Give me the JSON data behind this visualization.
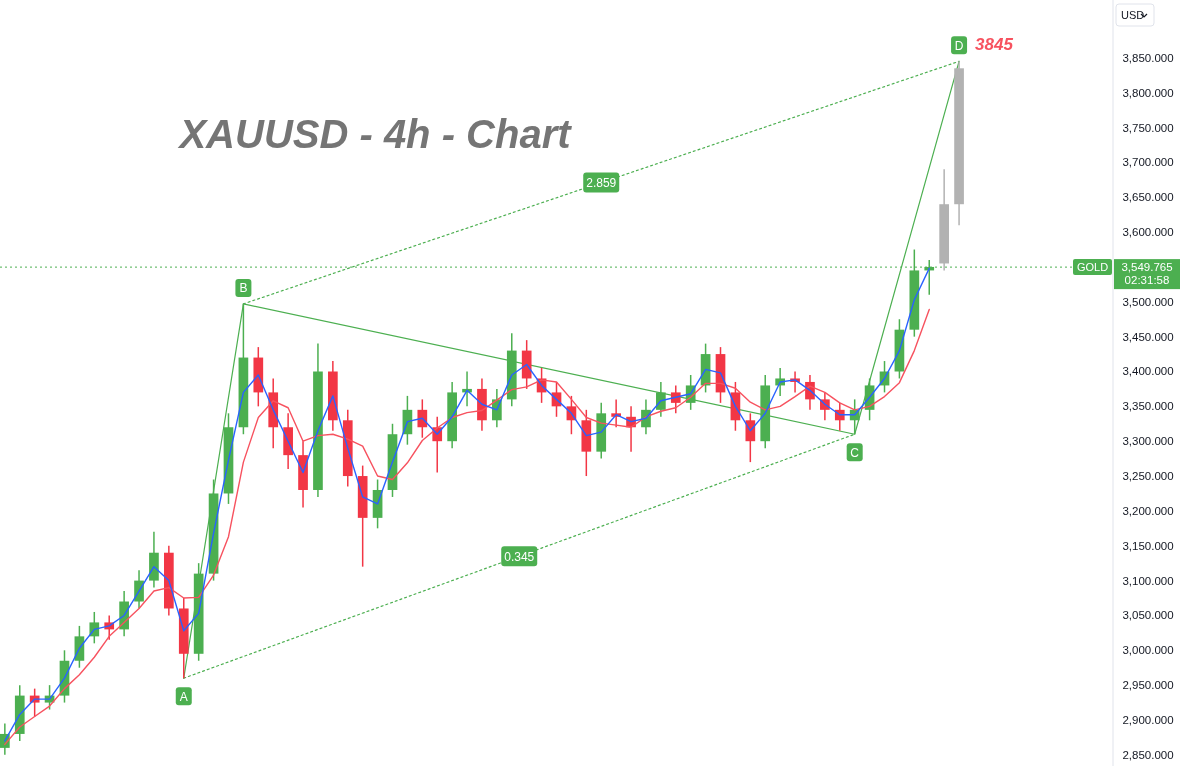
{
  "chart_data": {
    "type": "candlestick",
    "title": "XAUUSD - 4h - Chart",
    "categories": [
      null,
      null,
      null,
      null,
      null,
      null,
      null,
      null,
      null,
      null,
      null,
      null,
      null,
      null,
      null,
      null,
      null,
      null,
      null,
      null,
      null,
      null,
      null,
      null,
      null,
      null,
      null,
      null,
      null,
      null,
      null,
      null,
      null,
      null,
      null,
      null,
      null,
      null,
      null,
      null,
      null,
      null,
      null,
      null,
      null,
      null,
      null,
      null,
      null,
      null,
      null,
      null,
      null,
      null,
      null,
      null,
      null,
      null,
      null,
      null,
      null,
      null,
      null,
      null,
      null,
      null,
      null,
      null,
      null,
      null,
      null,
      null,
      null,
      null,
      null
    ],
    "series": [
      {
        "ohlc": [
          [
            2860,
            2895,
            2850,
            2880
          ],
          [
            2880,
            2950,
            2870,
            2935
          ],
          [
            2935,
            2945,
            2905,
            2925
          ],
          [
            2925,
            2950,
            2915,
            2935
          ],
          [
            2935,
            3000,
            2925,
            2985
          ],
          [
            2985,
            3035,
            2975,
            3020
          ],
          [
            3020,
            3055,
            3010,
            3040
          ],
          [
            3040,
            3050,
            3015,
            3030
          ],
          [
            3030,
            3085,
            3020,
            3070
          ],
          [
            3070,
            3115,
            3060,
            3100
          ],
          [
            3100,
            3170,
            3090,
            3140
          ],
          [
            3140,
            3150,
            3050,
            3060
          ],
          [
            3060,
            3075,
            2960,
            2995
          ],
          [
            2995,
            3125,
            2985,
            3110
          ],
          [
            3110,
            3245,
            3100,
            3225
          ],
          [
            3225,
            3340,
            3210,
            3320
          ],
          [
            3320,
            3497,
            3310,
            3420
          ],
          [
            3420,
            3435,
            3350,
            3370
          ],
          [
            3370,
            3390,
            3290,
            3320
          ],
          [
            3320,
            3340,
            3260,
            3280
          ],
          [
            3280,
            3300,
            3205,
            3230
          ],
          [
            3230,
            3440,
            3220,
            3400
          ],
          [
            3400,
            3415,
            3315,
            3330
          ],
          [
            3330,
            3345,
            3235,
            3250
          ],
          [
            3250,
            3265,
            3120,
            3190
          ],
          [
            3190,
            3245,
            3175,
            3230
          ],
          [
            3230,
            3325,
            3220,
            3310
          ],
          [
            3310,
            3365,
            3295,
            3345
          ],
          [
            3345,
            3360,
            3305,
            3320
          ],
          [
            3320,
            3335,
            3255,
            3300
          ],
          [
            3300,
            3385,
            3290,
            3370
          ],
          [
            3370,
            3400,
            3350,
            3375
          ],
          [
            3375,
            3390,
            3315,
            3330
          ],
          [
            3330,
            3375,
            3320,
            3360
          ],
          [
            3360,
            3455,
            3350,
            3430
          ],
          [
            3430,
            3445,
            3375,
            3390
          ],
          [
            3390,
            3405,
            3355,
            3370
          ],
          [
            3370,
            3385,
            3335,
            3350
          ],
          [
            3350,
            3365,
            3310,
            3330
          ],
          [
            3330,
            3345,
            3250,
            3285
          ],
          [
            3285,
            3355,
            3275,
            3340
          ],
          [
            3340,
            3360,
            3320,
            3335
          ],
          [
            3335,
            3350,
            3285,
            3320
          ],
          [
            3320,
            3360,
            3310,
            3345
          ],
          [
            3345,
            3385,
            3335,
            3370
          ],
          [
            3370,
            3380,
            3340,
            3355
          ],
          [
            3355,
            3395,
            3345,
            3380
          ],
          [
            3380,
            3440,
            3370,
            3425
          ],
          [
            3425,
            3435,
            3355,
            3370
          ],
          [
            3370,
            3385,
            3315,
            3330
          ],
          [
            3330,
            3340,
            3270,
            3300
          ],
          [
            3300,
            3395,
            3290,
            3380
          ],
          [
            3380,
            3405,
            3365,
            3390
          ],
          [
            3390,
            3400,
            3370,
            3385
          ],
          [
            3385,
            3395,
            3345,
            3360
          ],
          [
            3360,
            3370,
            3330,
            3345
          ],
          [
            3345,
            3355,
            3315,
            3330
          ],
          [
            3330,
            3360,
            3310,
            3345
          ],
          [
            3345,
            3390,
            3330,
            3380
          ],
          [
            3380,
            3415,
            3370,
            3400
          ],
          [
            3400,
            3475,
            3390,
            3460
          ],
          [
            3460,
            3575,
            3450,
            3545
          ],
          [
            3545,
            3560,
            3510,
            3550
          ],
          null,
          null,
          null,
          null,
          null,
          null,
          null,
          null,
          null,
          null,
          null,
          null
        ],
        "colors": [
          "#4caf50",
          "#4caf50",
          "#f23645",
          "#4caf50",
          "#4caf50",
          "#4caf50",
          "#4caf50",
          "#f23645",
          "#4caf50",
          "#4caf50",
          "#4caf50",
          "#f23645",
          "#f23645",
          "#4caf50",
          "#4caf50",
          "#4caf50",
          "#4caf50",
          "#f23645",
          "#f23645",
          "#f23645",
          "#f23645",
          "#4caf50",
          "#f23645",
          "#f23645",
          "#f23645",
          "#4caf50",
          "#4caf50",
          "#4caf50",
          "#f23645",
          "#f23645",
          "#4caf50",
          "#4caf50",
          "#f23645",
          "#4caf50",
          "#4caf50",
          "#f23645",
          "#f23645",
          "#f23645",
          "#f23645",
          "#f23645",
          "#4caf50",
          "#f23645",
          "#f23645",
          "#4caf50",
          "#4caf50",
          "#f23645",
          "#4caf50",
          "#4caf50",
          "#f23645",
          "#f23645",
          "#f23645",
          "#4caf50",
          "#4caf50",
          "#f23645",
          "#f23645",
          "#f23645",
          "#f23645",
          "#4caf50",
          "#4caf50",
          "#4caf50",
          "#4caf50",
          "#4caf50",
          "#4caf50",
          null,
          null,
          null,
          null,
          null,
          null,
          null,
          null,
          null,
          null,
          null,
          null
        ]
      },
      {
        "color": "#b2b2b2",
        "ohlc": [
          null,
          null,
          null,
          null,
          null,
          null,
          null,
          null,
          null,
          null,
          null,
          null,
          null,
          null,
          null,
          null,
          null,
          null,
          null,
          null,
          null,
          null,
          null,
          null,
          null,
          null,
          null,
          null,
          null,
          null,
          null,
          null,
          null,
          null,
          null,
          null,
          null,
          null,
          null,
          null,
          null,
          null,
          null,
          null,
          null,
          null,
          null,
          null,
          null,
          null,
          null,
          null,
          null,
          null,
          null,
          null,
          null,
          null,
          null,
          null,
          null,
          null,
          null,
          [
            3555,
            3690,
            3545,
            3640
          ],
          [
            3640,
            3845,
            3610,
            3835
          ],
          null,
          null,
          null,
          null,
          null,
          null,
          null,
          null,
          null,
          null
        ]
      },
      {
        "type": "line",
        "color": "#f7525f",
        "values": [
          2865,
          2890,
          2905,
          2920,
          2945,
          2965,
          2990,
          3020,
          3040,
          3060,
          3085,
          3090,
          3075,
          3076,
          3108,
          3163,
          3270,
          3334,
          3358,
          3348,
          3300,
          3308,
          3310,
          3303,
          3293,
          3250,
          3245,
          3269,
          3301,
          3319,
          3334,
          3341,
          3344,
          3359,
          3374,
          3378,
          3388,
          3385,
          3360,
          3334,
          3326,
          3323,
          3320,
          3335,
          3343,
          3348,
          3363,
          3383,
          3383,
          3376,
          3356,
          3345,
          3350,
          3364,
          3379,
          3370,
          3355,
          3345,
          3350,
          3364,
          3384,
          3430,
          3489,
          null,
          null,
          null,
          null,
          null,
          null,
          null,
          null,
          null,
          null,
          null,
          null
        ]
      },
      {
        "type": "line",
        "color": "#2962ff",
        "values": [
          2870,
          2908,
          2930,
          2930,
          2960,
          3003,
          3030,
          3035,
          3050,
          3085,
          3120,
          3100,
          3028,
          3053,
          3168,
          3273,
          3370,
          3395,
          3345,
          3300,
          3255,
          3315,
          3365,
          3290,
          3220,
          3210,
          3270,
          3328,
          3333,
          3310,
          3335,
          3373,
          3353,
          3345,
          3395,
          3410,
          3380,
          3360,
          3340,
          3308,
          3313,
          3338,
          3328,
          3333,
          3358,
          3363,
          3368,
          3403,
          3398,
          3350,
          3315,
          3340,
          3385,
          3388,
          3373,
          3353,
          3338,
          3338,
          3363,
          3390,
          3430,
          3503,
          3548,
          null,
          null,
          null,
          null,
          null,
          null,
          null,
          null,
          null,
          null,
          null,
          null
        ]
      },
      {
        "type": "line",
        "color": "#4caf50",
        "line_style": "solid",
        "values": [
          null,
          null,
          null,
          null,
          null,
          null,
          null,
          null,
          null,
          null,
          null,
          null,
          2960,
          null,
          null,
          null,
          3497,
          null,
          null,
          null,
          null,
          null,
          null,
          null,
          null,
          null,
          null,
          null,
          null,
          null,
          null,
          null,
          null,
          null,
          null,
          null,
          null,
          null,
          null,
          null,
          null,
          null,
          null,
          null,
          null,
          null,
          null,
          null,
          null,
          null,
          null,
          null,
          null,
          null,
          null,
          null,
          null,
          3310,
          null,
          null,
          null,
          null,
          null,
          null,
          3845,
          null,
          null,
          null,
          null,
          null,
          null,
          null,
          null,
          null,
          null
        ],
        "value_labels": [
          null,
          null,
          null,
          null,
          null,
          null,
          null,
          null,
          null,
          null,
          null,
          null,
          "A",
          null,
          null,
          null,
          "B",
          null,
          null,
          null,
          null,
          null,
          null,
          null,
          null,
          null,
          null,
          null,
          null,
          null,
          null,
          null,
          null,
          null,
          null,
          null,
          null,
          null,
          null,
          null,
          null,
          null,
          null,
          null,
          null,
          null,
          null,
          null,
          null,
          null,
          null,
          null,
          null,
          null,
          null,
          null,
          null,
          "C",
          null,
          null,
          null,
          null,
          null,
          null,
          "D",
          null,
          null,
          null,
          null,
          null,
          null,
          null,
          null,
          null,
          null
        ]
      },
      {
        "type": "line",
        "name": "2.859",
        "color": "#4caf50",
        "line_style": "dotted",
        "values": [
          null,
          null,
          null,
          null,
          null,
          null,
          null,
          null,
          null,
          null,
          null,
          null,
          null,
          null,
          null,
          null,
          3497,
          null,
          null,
          null,
          null,
          null,
          null,
          null,
          null,
          null,
          null,
          null,
          null,
          null,
          null,
          null,
          null,
          null,
          null,
          null,
          null,
          null,
          null,
          null,
          null,
          null,
          null,
          null,
          null,
          null,
          null,
          null,
          null,
          null,
          null,
          null,
          null,
          null,
          null,
          null,
          null,
          null,
          null,
          null,
          null,
          null,
          null,
          null,
          3845,
          null,
          null,
          null,
          null,
          null,
          null,
          null,
          null,
          null,
          null
        ]
      },
      {
        "type": "line",
        "name": "0.345",
        "color": "#4caf50",
        "line_style": "dotted",
        "values": [
          null,
          null,
          null,
          null,
          null,
          null,
          null,
          null,
          null,
          null,
          null,
          null,
          2960,
          null,
          null,
          null,
          null,
          null,
          null,
          null,
          null,
          null,
          null,
          null,
          null,
          null,
          null,
          null,
          null,
          null,
          null,
          null,
          null,
          null,
          null,
          null,
          null,
          null,
          null,
          null,
          null,
          null,
          null,
          null,
          null,
          null,
          null,
          null,
          null,
          null,
          null,
          null,
          null,
          null,
          null,
          null,
          null,
          3310,
          null,
          null,
          null,
          null,
          null,
          null,
          null,
          null,
          null,
          null,
          null,
          null,
          null,
          null,
          null,
          null,
          null
        ]
      }
    ],
    "ylim": [
      2834,
      3933
    ],
    "yticks": [
      {
        "value": 2850,
        "label": "2,850.000"
      },
      {
        "value": 2900,
        "label": "2,900.000"
      },
      {
        "value": 2950,
        "label": "2,950.000"
      },
      {
        "value": 3000,
        "label": "3,000.000"
      },
      {
        "value": 3050,
        "label": "3,050.000"
      },
      {
        "value": 3100,
        "label": "3,100.000"
      },
      {
        "value": 3150,
        "label": "3,150.000"
      },
      {
        "value": 3200,
        "label": "3,200.000"
      },
      {
        "value": 3250,
        "label": "3,250.000"
      },
      {
        "value": 3300,
        "label": "3,300.000"
      },
      {
        "value": 3350,
        "label": "3,350.000"
      },
      {
        "value": 3400,
        "label": "3,400.000"
      },
      {
        "value": 3450,
        "label": "3,450.000"
      },
      {
        "value": 3500,
        "label": "3,500.000"
      },
      {
        "value": 3600,
        "label": "3,600.000"
      },
      {
        "value": 3650,
        "label": "3,650.000"
      },
      {
        "value": 3700,
        "label": "3,700.000"
      },
      {
        "value": 3750,
        "label": "3,750.000"
      },
      {
        "value": 3800,
        "label": "3,800.000"
      },
      {
        "value": 3850,
        "label": "3,850.000"
      }
    ],
    "tick_labels": "y",
    "ref_lines": [
      {
        "axis": "y",
        "value": 3549.765,
        "label": "GOLD",
        "color": "#4caf50",
        "line_style": "dotted"
      }
    ],
    "annotations": [
      "3845",
      "3,549.765",
      "02:31:58",
      "USD"
    ]
  }
}
